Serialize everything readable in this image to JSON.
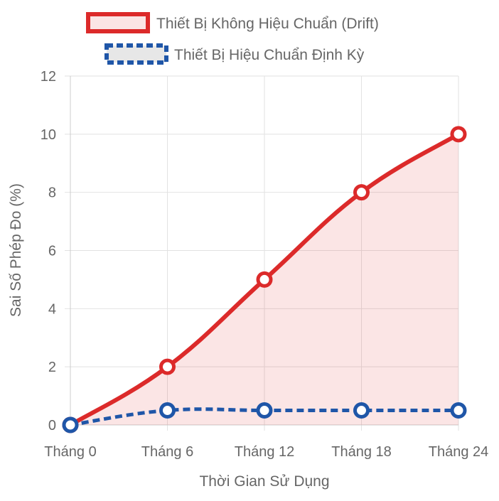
{
  "chart_data": {
    "type": "line",
    "categories": [
      "Tháng 0",
      "Tháng 6",
      "Tháng 12",
      "Tháng 18",
      "Tháng 24"
    ],
    "xlabel": "Thời Gian Sử Dụng",
    "ylabel": "Sai Số Phép Đo (%)",
    "ylim": [
      0,
      12
    ],
    "yticks": [
      0,
      2,
      4,
      6,
      8,
      10,
      12
    ],
    "grid": true,
    "legend_position": "top",
    "series": [
      {
        "name": "Thiết Bị Không Hiệu Chuẩn (Drift)",
        "values": [
          0,
          2,
          5,
          8,
          10
        ],
        "color": "#dc2a2a",
        "fill": "rgba(220,42,42,0.12)",
        "style": "solid",
        "filled": true
      },
      {
        "name": "Thiết Bị Hiệu Chuẩn Định Kỳ",
        "values": [
          0,
          0.5,
          0.5,
          0.5,
          0.5
        ],
        "color": "#1f56a8",
        "fill": "rgba(160,160,160,0.25)",
        "style": "dashed",
        "filled": false
      }
    ]
  }
}
